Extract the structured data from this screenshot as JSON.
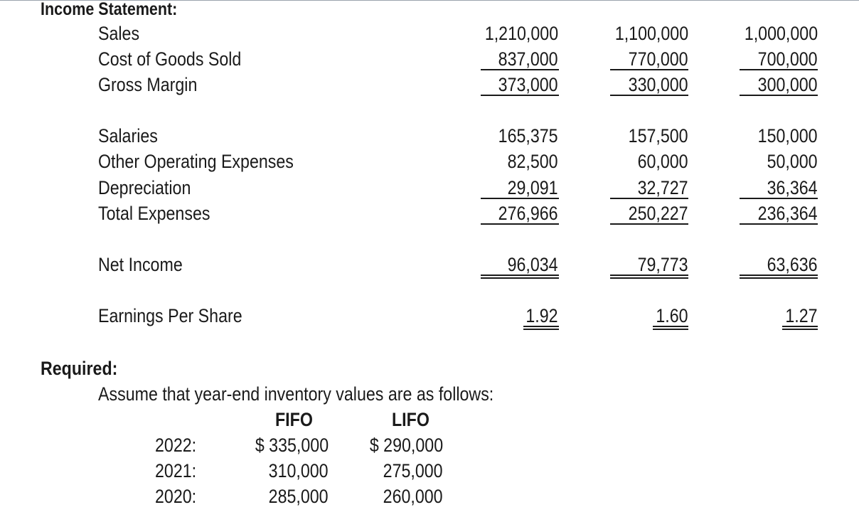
{
  "heading": "Income Statement:",
  "gross_section": [
    {
      "label": "Sales",
      "values": [
        "1,210,000",
        "1,100,000",
        "1,000,000"
      ]
    },
    {
      "label": "Cost of Goods Sold",
      "values": [
        "837,000",
        "770,000",
        "700,000"
      ]
    },
    {
      "label": "Gross Margin",
      "values": [
        "373,000",
        "330,000",
        "300,000"
      ]
    }
  ],
  "expense_section": [
    {
      "label": "Salaries",
      "values": [
        "165,375",
        "157,500",
        "150,000"
      ]
    },
    {
      "label": "Other Operating Expenses",
      "values": [
        "82,500",
        "60,000",
        "50,000"
      ]
    },
    {
      "label": "Depreciation",
      "values": [
        "29,091",
        "32,727",
        "36,364"
      ]
    },
    {
      "label": "Total Expenses",
      "values": [
        "276,966",
        "250,227",
        "236,364"
      ]
    }
  ],
  "net_income": {
    "label": "Net Income",
    "values": [
      "96,034",
      "79,773",
      "63,636"
    ]
  },
  "eps": {
    "label": "Earnings Per Share",
    "values": [
      "1.92",
      "1.60",
      "1.27"
    ]
  },
  "required": {
    "title": "Required:",
    "text": "Assume that year-end inventory values are as follows:",
    "headers": [
      "FIFO",
      "LIFO"
    ],
    "rows": [
      {
        "year": "2022:",
        "fifo": "$ 335,000",
        "lifo": "$ 290,000"
      },
      {
        "year": "2021:",
        "fifo": "310,000",
        "lifo": "275,000"
      },
      {
        "year": "2020:",
        "fifo": "285,000",
        "lifo": "260,000"
      }
    ]
  }
}
